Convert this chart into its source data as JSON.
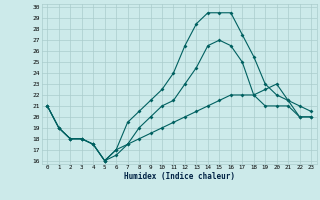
{
  "xlabel": "Humidex (Indice chaleur)",
  "xlim": [
    -0.5,
    23.5
  ],
  "ylim": [
    15.7,
    30.3
  ],
  "yticks": [
    16,
    17,
    18,
    19,
    20,
    21,
    22,
    23,
    24,
    25,
    26,
    27,
    28,
    29,
    30
  ],
  "xticks": [
    0,
    1,
    2,
    3,
    4,
    5,
    6,
    7,
    8,
    9,
    10,
    11,
    12,
    13,
    14,
    15,
    16,
    17,
    18,
    19,
    20,
    21,
    22,
    23
  ],
  "bg_color": "#cceaea",
  "line_color": "#006060",
  "grid_color": "#aacccc",
  "line1_y": [
    21,
    19,
    18,
    18,
    17.5,
    16,
    16.5,
    17.5,
    19,
    20,
    21,
    21.5,
    23,
    24.5,
    26.5,
    27,
    26.5,
    25,
    22,
    21,
    21,
    21,
    20,
    20
  ],
  "line2_y": [
    21,
    19,
    18,
    18,
    17.5,
    16,
    17,
    19.5,
    20.5,
    21.5,
    22.5,
    24,
    26.5,
    28.5,
    29.5,
    29.5,
    29.5,
    27.5,
    25.5,
    23,
    22,
    21.5,
    21,
    20.5
  ],
  "line3_y": [
    21,
    19,
    18,
    18,
    17.5,
    16,
    17,
    17.5,
    18,
    18.5,
    19,
    19.5,
    20,
    20.5,
    21,
    21.5,
    22,
    22,
    22,
    22.5,
    23,
    21.5,
    20,
    20
  ]
}
